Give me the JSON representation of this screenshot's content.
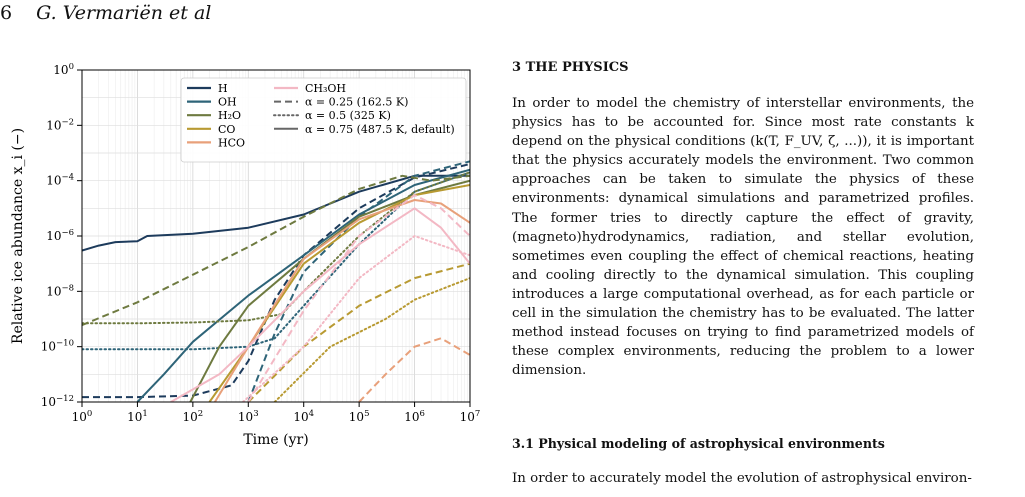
{
  "header": {
    "page_number": "6",
    "authors": "G. Vermariën et al"
  },
  "figure": {
    "chart_data": {
      "type": "line",
      "x_scale": "log",
      "y_scale": "log",
      "xlim": [
        1,
        10000000
      ],
      "ylim": [
        1e-12,
        1
      ],
      "xlabel": "Time (yr)",
      "ylabel": "Relative ice abundance x_i (−)",
      "x_ticks": [
        {
          "v": 1,
          "base": "10",
          "exp": "0"
        },
        {
          "v": 10,
          "base": "10",
          "exp": "1"
        },
        {
          "v": 100,
          "base": "10",
          "exp": "2"
        },
        {
          "v": 1000,
          "base": "10",
          "exp": "3"
        },
        {
          "v": 10000,
          "base": "10",
          "exp": "4"
        },
        {
          "v": 100000,
          "base": "10",
          "exp": "5"
        },
        {
          "v": 1000000,
          "base": "10",
          "exp": "6"
        },
        {
          "v": 10000000,
          "base": "10",
          "exp": "7"
        }
      ],
      "y_ticks": [
        {
          "v": 1,
          "base": "10",
          "exp": "0"
        },
        {
          "v": 0.01,
          "base": "10",
          "exp": "−2"
        },
        {
          "v": 0.0001,
          "base": "10",
          "exp": "−4"
        },
        {
          "v": 1e-06,
          "base": "10",
          "exp": "−6"
        },
        {
          "v": 1e-08,
          "base": "10",
          "exp": "−8"
        },
        {
          "v": 1e-10,
          "base": "10",
          "exp": "−10"
        },
        {
          "v": 1e-12,
          "base": "10",
          "exp": "−12"
        }
      ],
      "grid": true,
      "legend_position": "top-center",
      "species": [
        {
          "key": "H",
          "label": "H",
          "color": "#1d3b5c"
        },
        {
          "key": "OH",
          "label": "OH",
          "color": "#2e6478"
        },
        {
          "key": "H2O",
          "label": "H₂O",
          "color": "#6e7a40"
        },
        {
          "key": "CO",
          "label": "CO",
          "color": "#b89a32"
        },
        {
          "key": "HCO",
          "label": "HCO",
          "color": "#e8a07a"
        },
        {
          "key": "CH3OH",
          "label": "CH₃OH",
          "color": "#f3b8c4"
        }
      ],
      "styles": [
        {
          "key": "0.25",
          "label": "α = 0.25 (162.5 K)",
          "dash": "7,4"
        },
        {
          "key": "0.5",
          "label": "α = 0.5 (325 K)",
          "dash": "1.5,3"
        },
        {
          "key": "0.75",
          "label": "α = 0.75 (487.5 K, default)",
          "dash": ""
        }
      ],
      "series": [
        {
          "species": "H",
          "alpha": "0.75",
          "points": [
            [
              1,
              3e-07
            ],
            [
              2,
              4.5e-07
            ],
            [
              4,
              6e-07
            ],
            [
              10,
              6.5e-07
            ],
            [
              15,
              1e-06
            ],
            [
              100,
              1.2e-06
            ],
            [
              1000,
              2e-06
            ],
            [
              10000,
              6e-06
            ],
            [
              100000,
              4e-05
            ],
            [
              1000000,
              0.00015
            ],
            [
              10000000,
              0.00015
            ]
          ]
        },
        {
          "species": "H",
          "alpha": "0.25",
          "points": [
            [
              1,
              1.5e-12
            ],
            [
              10,
              1.5e-12
            ],
            [
              100,
              1.7e-12
            ],
            [
              500,
              4e-12
            ],
            [
              1000,
              3e-11
            ],
            [
              3000,
              5e-09
            ],
            [
              10000,
              2e-07
            ],
            [
              100000,
              1e-05
            ],
            [
              1000000,
              0.00013
            ],
            [
              10000000,
              0.0004
            ]
          ]
        },
        {
          "species": "OH",
          "alpha": "0.75",
          "points": [
            [
              10,
              1e-12
            ],
            [
              30,
              1e-11
            ],
            [
              100,
              1.5e-10
            ],
            [
              1000,
              7e-09
            ],
            [
              10000,
              2e-07
            ],
            [
              100000,
              6e-06
            ],
            [
              1000000,
              7e-05
            ],
            [
              10000000,
              0.00025
            ]
          ]
        },
        {
          "species": "OH",
          "alpha": "0.25",
          "points": [
            [
              1000,
              1e-12
            ],
            [
              3000,
              3e-10
            ],
            [
              10000,
              5e-08
            ],
            [
              100000,
              5e-06
            ],
            [
              1000000,
              0.00015
            ],
            [
              10000000,
              0.0005
            ]
          ]
        },
        {
          "species": "OH",
          "alpha": "0.5",
          "points": [
            [
              1,
              8e-11
            ],
            [
              100,
              8e-11
            ],
            [
              1000,
              1e-10
            ],
            [
              3000,
              2e-10
            ],
            [
              10000,
              3e-09
            ],
            [
              100000,
              5e-07
            ],
            [
              1000000,
              4e-05
            ],
            [
              10000000,
              0.0002
            ]
          ]
        },
        {
          "species": "H2O",
          "alpha": "0.25",
          "points": [
            [
              1,
              6e-10
            ],
            [
              10,
              4e-09
            ],
            [
              100,
              4e-08
            ],
            [
              1000,
              4e-07
            ],
            [
              10000,
              5e-06
            ],
            [
              100000,
              5e-05
            ],
            [
              600000,
              0.00015
            ],
            [
              2000000,
              0.0001
            ],
            [
              10000000,
              0.00015
            ]
          ]
        },
        {
          "species": "H2O",
          "alpha": "0.5",
          "points": [
            [
              1,
              7e-10
            ],
            [
              10,
              7e-10
            ],
            [
              100,
              7.5e-10
            ],
            [
              1000,
              9e-10
            ],
            [
              4000,
              1.5e-09
            ],
            [
              10000,
              1e-08
            ],
            [
              100000,
              1e-06
            ],
            [
              1000000,
              4e-05
            ],
            [
              10000000,
              0.0002
            ]
          ]
        },
        {
          "species": "H2O",
          "alpha": "0.75",
          "points": [
            [
              90,
              1e-12
            ],
            [
              300,
              1e-10
            ],
            [
              1000,
              3e-09
            ],
            [
              10000,
              1.5e-07
            ],
            [
              100000,
              5e-06
            ],
            [
              1000000,
              3e-05
            ],
            [
              10000000,
              0.0001
            ]
          ]
        },
        {
          "species": "CO",
          "alpha": "0.75",
          "points": [
            [
              200,
              1e-12
            ],
            [
              1000,
              1e-10
            ],
            [
              10000,
              1e-07
            ],
            [
              100000,
              3e-06
            ],
            [
              1000000,
              3e-05
            ],
            [
              10000000,
              7e-05
            ]
          ]
        },
        {
          "species": "CO",
          "alpha": "0.25",
          "points": [
            [
              1000,
              1e-12
            ],
            [
              10000,
              1e-10
            ],
            [
              100000,
              3e-09
            ],
            [
              1000000,
              3e-08
            ],
            [
              10000000,
              1e-07
            ]
          ]
        },
        {
          "species": "CO",
          "alpha": "0.5",
          "points": [
            [
              3000,
              1e-12
            ],
            [
              30000,
              1e-10
            ],
            [
              300000,
              1e-09
            ],
            [
              1000000,
              5e-09
            ],
            [
              10000000,
              3e-08
            ]
          ]
        },
        {
          "species": "HCO",
          "alpha": "0.75",
          "points": [
            [
              250,
              1e-12
            ],
            [
              1000,
              1e-10
            ],
            [
              10000,
              1.5e-07
            ],
            [
              100000,
              4e-06
            ],
            [
              1000000,
              2e-05
            ],
            [
              3000000,
              1.5e-05
            ],
            [
              10000000,
              3e-06
            ]
          ]
        },
        {
          "species": "HCO",
          "alpha": "0.25",
          "points": [
            [
              100000,
              1e-12
            ],
            [
              300000,
              1e-11
            ],
            [
              1000000,
              1e-10
            ],
            [
              3000000,
              2e-10
            ],
            [
              10000000,
              5e-11
            ]
          ]
        },
        {
          "species": "CH3OH",
          "alpha": "0.75",
          "points": [
            [
              40,
              1e-12
            ],
            [
              300,
              1e-11
            ],
            [
              1000,
              1e-10
            ],
            [
              10000,
              1e-08
            ],
            [
              100000,
              5e-07
            ],
            [
              1000000,
              1e-05
            ],
            [
              3000000,
              2e-06
            ],
            [
              10000000,
              1e-07
            ]
          ]
        },
        {
          "species": "CH3OH",
          "alpha": "0.25",
          "points": [
            [
              1000,
              1e-12
            ],
            [
              10000,
              2e-09
            ],
            [
              100000,
              1e-06
            ],
            [
              1000000,
              3e-05
            ],
            [
              3000000,
              1e-05
            ],
            [
              10000000,
              1e-06
            ]
          ]
        },
        {
          "species": "CH3OH",
          "alpha": "0.5",
          "points": [
            [
              800,
              1e-12
            ],
            [
              10000,
              1e-10
            ],
            [
              100000,
              3e-08
            ],
            [
              1000000,
              1e-06
            ],
            [
              10000000,
              2e-07
            ]
          ]
        }
      ]
    }
  },
  "section": {
    "title": "3 THE PHYSICS",
    "paragraphs": [
      "In order to model the chemistry of interstellar environments, the physics has to be accounted for. Since most rate constants k depend on the physical conditions (k(T, F_UV, ζ, ...)), it is important that the physics accurately models the environment. Two common approaches can be taken to simulate the physics of these environments: dynamical simulations and parametrized profiles. The former tries to directly capture the effect of gravity, (magneto)hydrodynamics, radiation, and stellar evolution, sometimes even coupling the effect of chemical reactions, heating and cooling directly to the dynamical simulation. This coupling introduces a large computational overhead, as for each particle or cell in the simulation the chemistry has to be evaluated. The latter method instead focuses on trying to find parametrized models of these complex environments, reducing the problem to a lower dimension."
    ]
  },
  "subsection": {
    "title": "3.1 Physical modeling of astrophysical environments",
    "paragraph_start": "In order to accurately model the evolution of astrophysical environ-"
  }
}
